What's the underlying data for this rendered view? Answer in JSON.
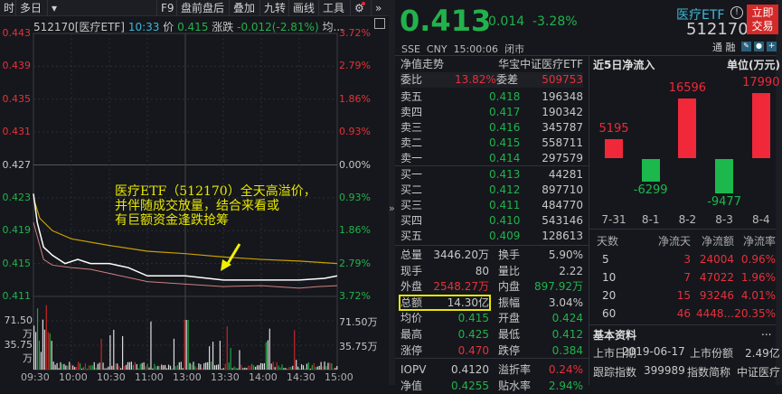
{
  "toolbar": {
    "items": [
      "时",
      "多日",
      "▾",
      "F9",
      "盘前盘后",
      "叠加",
      "九转",
      "画线",
      "工具"
    ]
  },
  "chart": {
    "code_name": "512170[医疗ETF]",
    "time": "10:33",
    "price_label": "价",
    "price": "0.415",
    "change_label": "涨跌",
    "change": "-0.012(-2.81%)",
    "avg_label": "均...",
    "left_axis": [
      "0.443",
      "0.439",
      "0.435",
      "0.431",
      "0.427",
      "0.423",
      "0.419",
      "0.415",
      "0.411"
    ],
    "right_axis": [
      "3.72%",
      "2.79%",
      "1.86%",
      "0.93%",
      "0.00%",
      "0.93%",
      "1.86%",
      "2.79%",
      "3.72%"
    ],
    "vol_axis": [
      "71.50万",
      "35.75万"
    ],
    "time_axis": [
      "09:30",
      "10:00",
      "10:30",
      "11:00",
      "13:00",
      "13:30",
      "14:00",
      "14:30",
      "15:00"
    ],
    "annotation": [
      "医疗ETF（512170）全天高溢价，",
      "并伴随成交放量，结合来看或",
      "有巨额资金逢跌抢筹"
    ],
    "price_series": [
      [
        0,
        0.4235
      ],
      [
        3,
        0.42
      ],
      [
        8,
        0.417
      ],
      [
        15,
        0.416
      ],
      [
        25,
        0.415
      ],
      [
        35,
        0.4155
      ],
      [
        45,
        0.415
      ],
      [
        60,
        0.415
      ],
      [
        75,
        0.4145
      ],
      [
        90,
        0.4135
      ],
      [
        120,
        0.4135
      ],
      [
        150,
        0.413
      ],
      [
        180,
        0.413
      ],
      [
        210,
        0.413
      ],
      [
        230,
        0.4132
      ],
      [
        240,
        0.4135
      ]
    ],
    "avg_series": [
      [
        0,
        0.423
      ],
      [
        5,
        0.4205
      ],
      [
        15,
        0.419
      ],
      [
        30,
        0.418
      ],
      [
        60,
        0.4172
      ],
      [
        90,
        0.4165
      ],
      [
        120,
        0.4162
      ],
      [
        150,
        0.4158
      ],
      [
        180,
        0.4155
      ],
      [
        210,
        0.4153
      ],
      [
        240,
        0.415
      ]
    ],
    "iopv_series": [
      [
        0,
        0.42
      ],
      [
        8,
        0.4155
      ],
      [
        15,
        0.4148
      ],
      [
        30,
        0.4145
      ],
      [
        45,
        0.4143
      ],
      [
        60,
        0.4138
      ],
      [
        90,
        0.4128
      ],
      [
        120,
        0.4125
      ],
      [
        150,
        0.4122
      ],
      [
        180,
        0.4123
      ],
      [
        210,
        0.412
      ],
      [
        225,
        0.4122
      ],
      [
        240,
        0.4123
      ]
    ],
    "colors": {
      "price": "#ffffff",
      "avg": "#c8a000",
      "iopv": "#d08080",
      "annotation": "#e8e800",
      "arrow": "#f0f000"
    }
  },
  "quote": {
    "price": "0.413",
    "change": "-0.014",
    "change_pct": "-3.28%",
    "name": "医疗ETF",
    "code": "512170",
    "trade_button": [
      "立即",
      "交易"
    ],
    "exchange": "SSE",
    "currency": "CNY",
    "time": "15:00:06",
    "status": "闭市",
    "tags": [
      "通",
      "融"
    ]
  },
  "orderbook": {
    "nav_trend": "净值走势",
    "fund_name": "华宝中证医疗ETF",
    "ratio_label": "委比",
    "ratio": "13.82%",
    "diff_label": "委差",
    "diff": "509753",
    "asks": [
      {
        "label": "卖五",
        "price": "0.418",
        "vol": "196348"
      },
      {
        "label": "卖四",
        "price": "0.417",
        "vol": "190342"
      },
      {
        "label": "卖三",
        "price": "0.416",
        "vol": "345787"
      },
      {
        "label": "卖二",
        "price": "0.415",
        "vol": "558711"
      },
      {
        "label": "卖一",
        "price": "0.414",
        "vol": "297579"
      }
    ],
    "bids": [
      {
        "label": "买一",
        "price": "0.413",
        "vol": "44281"
      },
      {
        "label": "买二",
        "price": "0.412",
        "vol": "897710"
      },
      {
        "label": "买三",
        "price": "0.411",
        "vol": "484770"
      },
      {
        "label": "买四",
        "price": "0.410",
        "vol": "543146"
      },
      {
        "label": "买五",
        "price": "0.409",
        "vol": "128613"
      }
    ]
  },
  "stats": [
    {
      "l1": "总量",
      "v1": "3446.20万",
      "c1": "gray",
      "l2": "换手",
      "v2": "5.90%",
      "c2": "gray"
    },
    {
      "l1": "现手",
      "v1": "80",
      "c1": "gray",
      "l2": "量比",
      "v2": "2.22",
      "c2": "gray"
    },
    {
      "l1": "外盘",
      "v1": "2548.27万",
      "c1": "red",
      "l2": "内盘",
      "v2": "897.92万",
      "c2": "green"
    },
    {
      "l1": "总额",
      "v1": "14.30亿",
      "c1": "gray",
      "l2": "振幅",
      "v2": "3.04%",
      "c2": "gray"
    },
    {
      "l1": "均价",
      "v1": "0.415",
      "c1": "green",
      "l2": "开盘",
      "v2": "0.424",
      "c2": "green"
    },
    {
      "l1": "最高",
      "v1": "0.425",
      "c1": "green",
      "l2": "最低",
      "v2": "0.412",
      "c2": "green"
    },
    {
      "l1": "涨停",
      "v1": "0.470",
      "c1": "red",
      "l2": "跌停",
      "v2": "0.384",
      "c2": "green"
    },
    {
      "l1": "IOPV",
      "v1": "0.4120",
      "c1": "gray",
      "l2": "溢折率",
      "v2": "0.24%",
      "c2": "red"
    },
    {
      "l1": "净值",
      "v1": "0.4255",
      "c1": "green",
      "l2": "贴水率",
      "v2": "2.94%",
      "c2": "green"
    }
  ],
  "flow": {
    "title": "近5日净流入",
    "unit": "单位(万元)",
    "days": [
      "7-31",
      "8-1",
      "8-2",
      "8-3",
      "8-4"
    ],
    "values": [
      5195,
      -6299,
      16596,
      -9477,
      17990
    ],
    "labels": [
      "5195",
      "-6299",
      "16596",
      "-9477",
      "17990"
    ],
    "colors": {
      "up": "#f0283a",
      "down": "#1cb84c"
    },
    "table_headers": [
      "天数",
      "净流天",
      "净流额",
      "净流率"
    ],
    "table_rows": [
      [
        "5",
        "3",
        "24004",
        "0.96%"
      ],
      [
        "10",
        "7",
        "47022",
        "1.96%"
      ],
      [
        "20",
        "15",
        "93246",
        "4.01%"
      ],
      [
        "60",
        "46",
        "4448...",
        "20.35%"
      ]
    ]
  },
  "basic": {
    "title": "基本资料",
    "more": "...",
    "listing_date_label": "上市日期",
    "listing_date": "2019-06-17",
    "listing_shares_label": "上市份额",
    "listing_shares": "2.49亿",
    "index_label": "跟踪指数",
    "index_code": "399989",
    "index_name_label": "指数简称",
    "index_name": "中证医疗"
  }
}
